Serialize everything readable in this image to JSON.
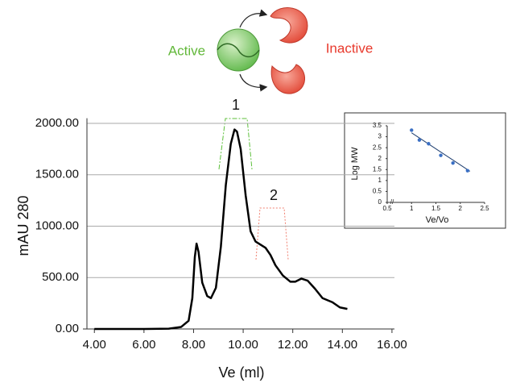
{
  "chart_data": [
    {
      "type": "line",
      "x_label": "Ve (ml)",
      "y_label": "mAU 280",
      "x": [
        4.0,
        5.0,
        6.0,
        7.0,
        7.5,
        7.8,
        7.95,
        8.05,
        8.12,
        8.2,
        8.35,
        8.55,
        8.7,
        8.9,
        9.1,
        9.3,
        9.5,
        9.65,
        9.75,
        9.9,
        10.1,
        10.3,
        10.5,
        10.7,
        10.9,
        11.1,
        11.3,
        11.6,
        11.9,
        12.1,
        12.35,
        12.6,
        12.9,
        13.2,
        13.6,
        13.9,
        14.2
      ],
      "series": [
        {
          "color": "#000000",
          "values": [
            0,
            0,
            0,
            3,
            20,
            80,
            300,
            700,
            830,
            750,
            450,
            320,
            300,
            400,
            800,
            1400,
            1800,
            1940,
            1920,
            1750,
            1300,
            950,
            850,
            820,
            790,
            720,
            620,
            520,
            460,
            460,
            490,
            470,
            390,
            300,
            260,
            210,
            195
          ]
        }
      ],
      "xlim": [
        3.7,
        16.1
      ],
      "ylim": [
        0,
        2050
      ],
      "xticks": [
        {
          "value": 4,
          "label": "4.00"
        },
        {
          "value": 6,
          "label": "6.00"
        },
        {
          "value": 8,
          "label": "8.00"
        },
        {
          "value": 10,
          "label": "10.00"
        },
        {
          "value": 12,
          "label": "12.00"
        },
        {
          "value": 14,
          "label": "14.00"
        },
        {
          "value": 16,
          "label": "16.00"
        }
      ],
      "yticks": [
        {
          "value": 0,
          "label": "0.00"
        },
        {
          "value": 500,
          "label": "500.00"
        },
        {
          "value": 1000,
          "label": "1000.00"
        },
        {
          "value": 1500,
          "label": "1500.00"
        },
        {
          "value": 2000,
          "label": "2000.00"
        }
      ],
      "grid": true,
      "annotations": [
        "1",
        "2"
      ]
    },
    {
      "type": "scatter",
      "x_label": "Ve/Vo",
      "y_label": "Log MW",
      "x": [
        1.0,
        1.16,
        1.35,
        1.6,
        1.85,
        2.15
      ],
      "values": [
        3.3,
        2.85,
        2.68,
        2.15,
        1.8,
        1.45
      ],
      "color": "#3a6fc4",
      "trendline": {
        "x": [
          1.0,
          2.2
        ],
        "y": [
          3.18,
          1.42
        ],
        "color": "#1f3f70"
      },
      "xlim": [
        0.5,
        2.5
      ],
      "ylim": [
        0,
        3.5
      ],
      "xticks": [
        0.5,
        1,
        1.5,
        2,
        2.5
      ],
      "yticks": [
        0,
        0.5,
        1,
        1.5,
        2,
        2.5,
        3,
        3.5
      ]
    }
  ],
  "diagram": {
    "active": "Active",
    "inactive": "Inactive"
  }
}
